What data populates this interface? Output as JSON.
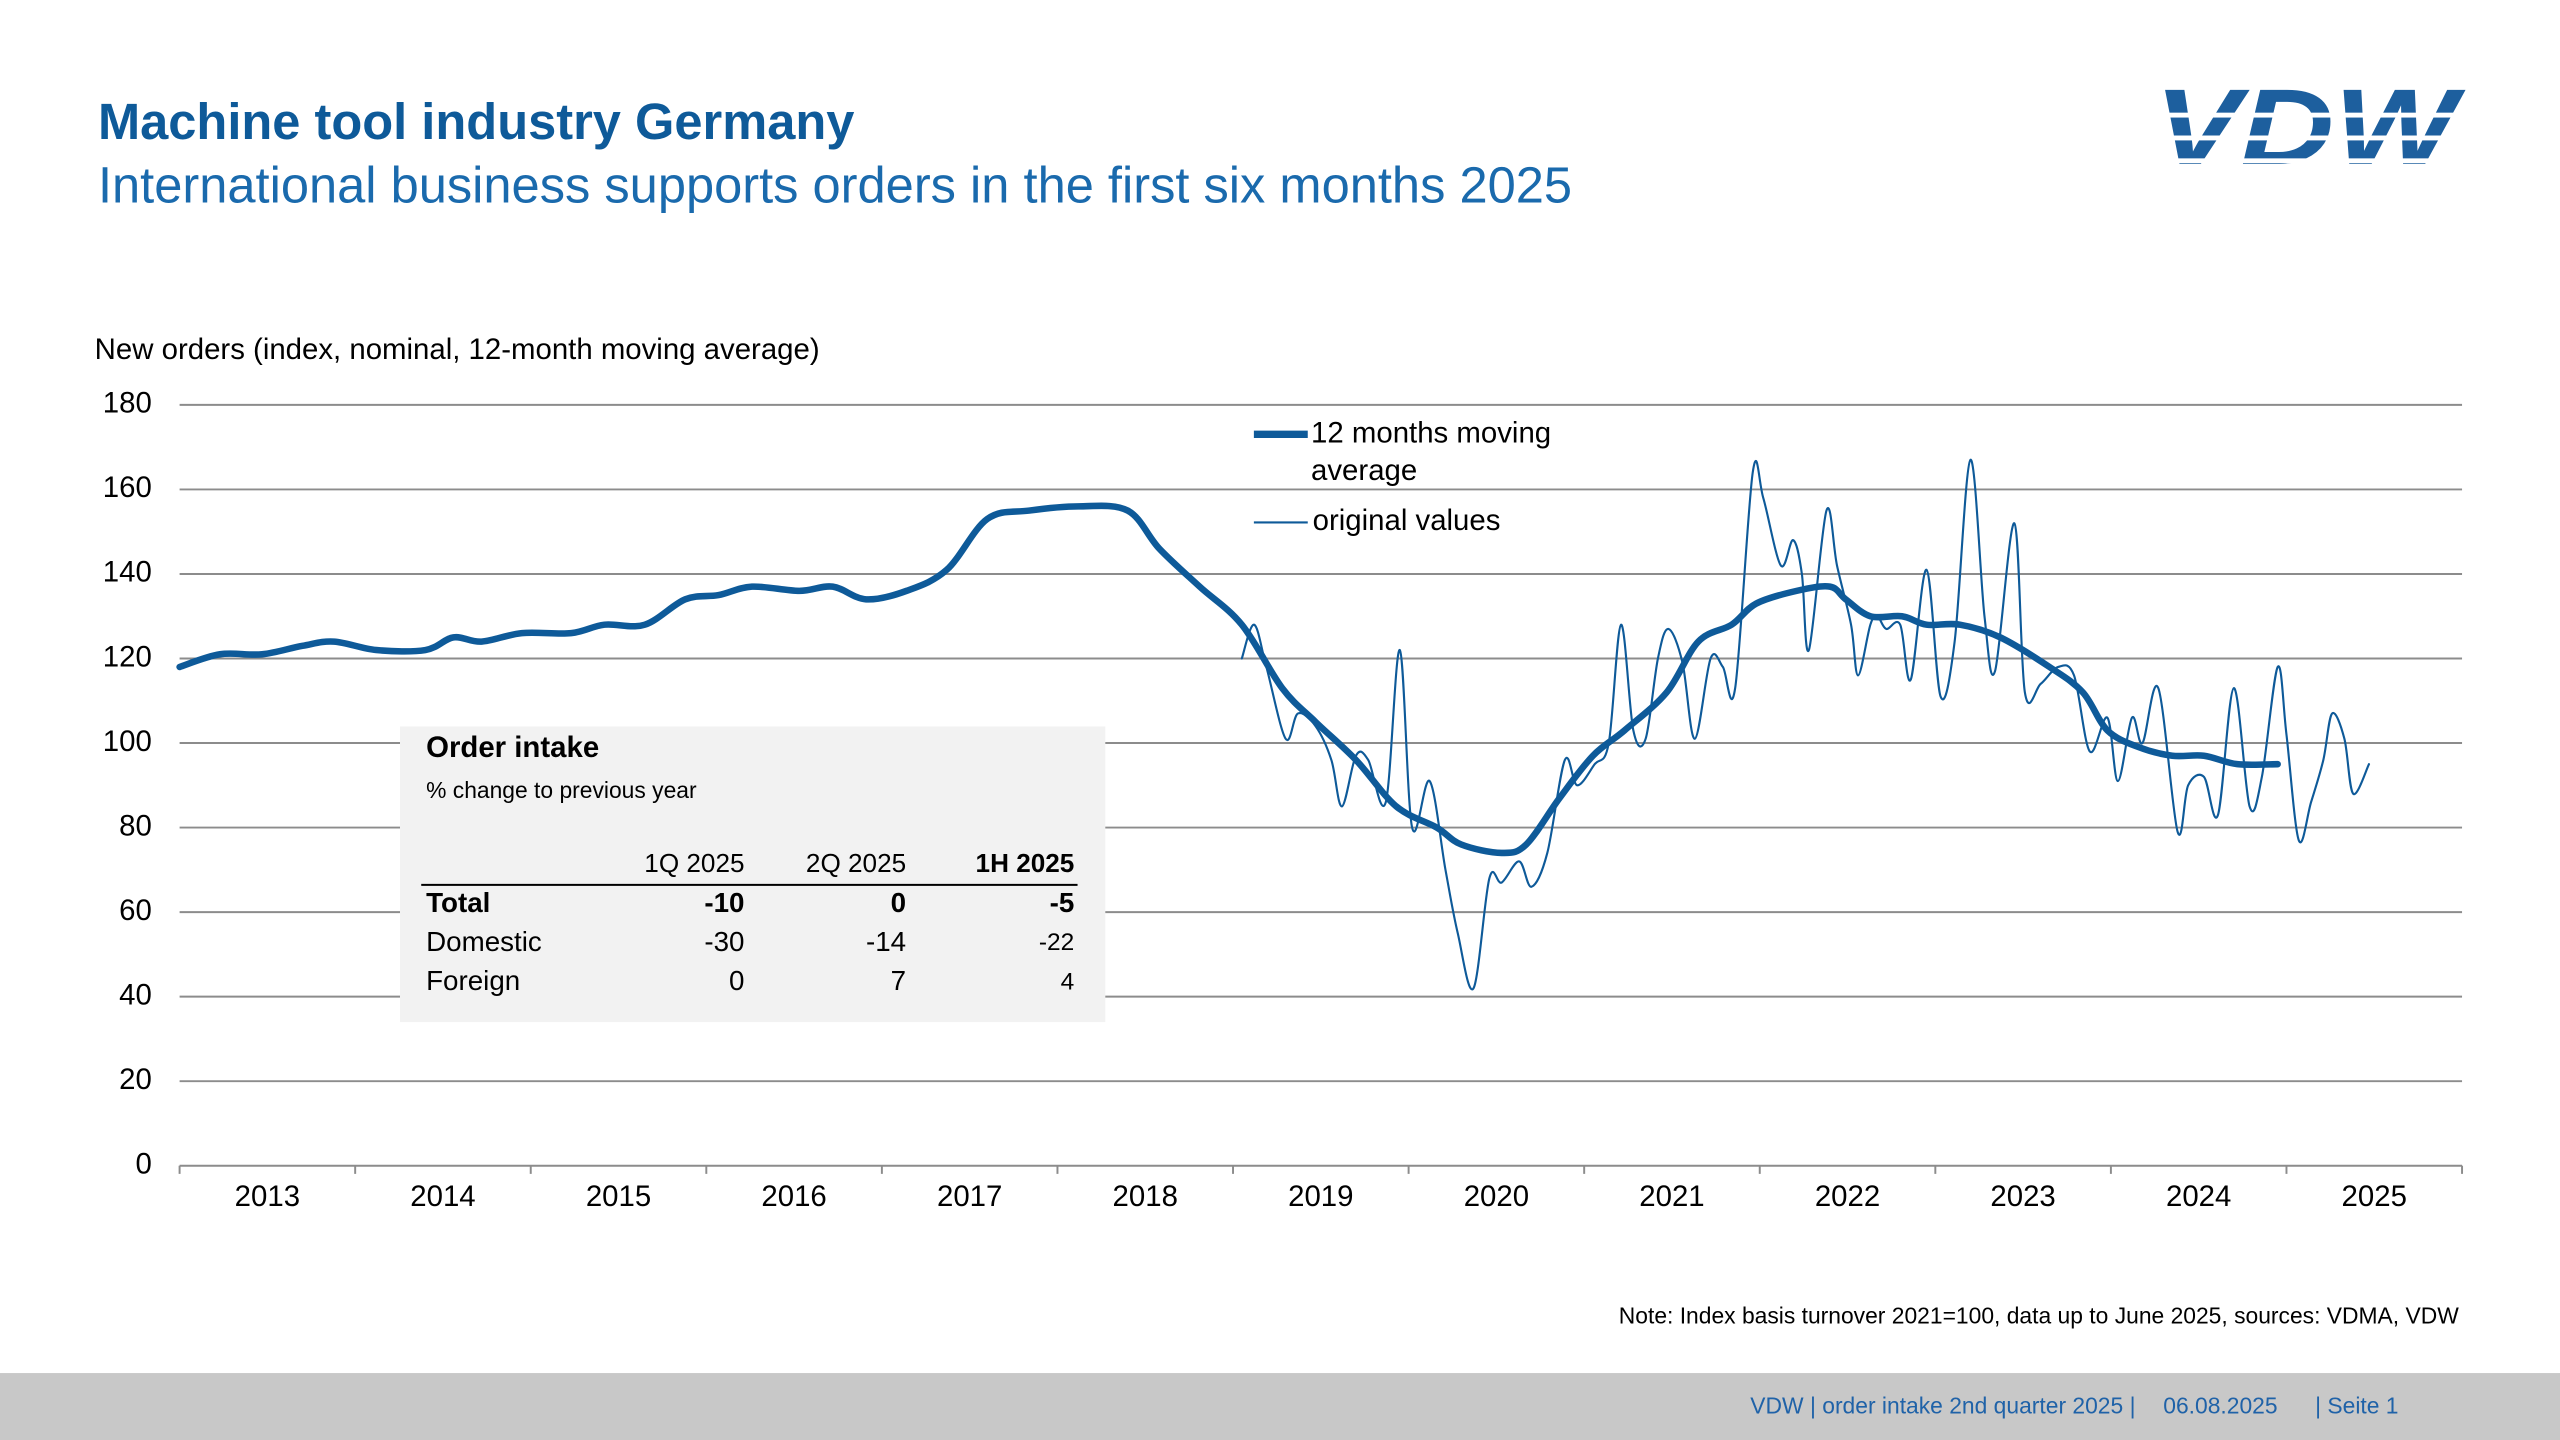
{
  "header": {
    "title": "Machine tool industry Germany",
    "subtitle": "International business supports orders in the first six months 2025",
    "logo": "VDW"
  },
  "chart_data": {
    "type": "line",
    "y_label": "New orders (index, nominal, 12-month moving average)",
    "ylim": [
      0,
      180
    ],
    "yticks": [
      0,
      20,
      40,
      60,
      80,
      100,
      120,
      140,
      160,
      180
    ],
    "grid": true,
    "xlim": [
      2013,
      2026
    ],
    "xticks": [
      2013,
      2014,
      2015,
      2016,
      2017,
      2018,
      2019,
      2020,
      2021,
      2022,
      2023,
      2024,
      2025,
      2026
    ],
    "categories": [
      "2013",
      "2014",
      "2015",
      "2016",
      "2017",
      "2018",
      "2019",
      "2020",
      "2021",
      "2022",
      "2023",
      "2024",
      "2025"
    ],
    "legend": "top-center",
    "series": [
      {
        "name": "12 months moving average",
        "color": "#0e5a99",
        "width": 4,
        "x": [
          2013.0,
          2013.23,
          2013.47,
          2013.7,
          2013.88,
          2014.12,
          2014.4,
          2014.56,
          2014.72,
          2014.95,
          2015.23,
          2015.42,
          2015.65,
          2015.88,
          2016.07,
          2016.26,
          2016.53,
          2016.72,
          2016.91,
          2017.14,
          2017.37,
          2017.6,
          2017.84,
          2018.12,
          2018.4,
          2018.58,
          2018.81,
          2019.05,
          2019.28,
          2019.47,
          2019.7,
          2019.93,
          2020.16,
          2020.3,
          2020.53,
          2020.67,
          2020.86,
          2021.05,
          2021.23,
          2021.47,
          2021.65,
          2021.84,
          2021.98,
          2022.21,
          2022.4,
          2022.49,
          2022.63,
          2022.81,
          2022.95,
          2023.14,
          2023.37,
          2023.65,
          2023.84,
          2023.98,
          2024.16,
          2024.35,
          2024.53,
          2024.72,
          2024.95
        ],
        "values": [
          118,
          121,
          121,
          123,
          124,
          122,
          122,
          125,
          124,
          126,
          126,
          128,
          128,
          134,
          135,
          137,
          136,
          137,
          134,
          136,
          141,
          153,
          155,
          156,
          155,
          146,
          137,
          128,
          113,
          105,
          96,
          85,
          80,
          76,
          74,
          76,
          87,
          97,
          103,
          112,
          124,
          128,
          133,
          136,
          137,
          134,
          130,
          130,
          128,
          128,
          125,
          118,
          112,
          103,
          99,
          97,
          97,
          95,
          95
        ]
      },
      {
        "name": "original values",
        "color": "#0e5a99",
        "width": 1.3,
        "x": [
          2019.05,
          2019.12,
          2019.19,
          2019.3,
          2019.37,
          2019.47,
          2019.56,
          2019.62,
          2019.7,
          2019.77,
          2019.87,
          2019.95,
          2020.02,
          2020.12,
          2020.21,
          2020.28,
          2020.37,
          2020.46,
          2020.53,
          2020.63,
          2020.7,
          2020.79,
          2020.89,
          2020.96,
          2021.06,
          2021.14,
          2021.21,
          2021.28,
          2021.35,
          2021.42,
          2021.48,
          2021.56,
          2021.63,
          2021.72,
          2021.79,
          2021.86,
          2021.96,
          2022.02,
          2022.12,
          2022.19,
          2022.24,
          2022.28,
          2022.38,
          2022.44,
          2022.52,
          2022.56,
          2022.63,
          2022.67,
          2022.72,
          2022.8,
          2022.86,
          2022.95,
          2023.03,
          2023.11,
          2023.2,
          2023.28,
          2023.34,
          2023.45,
          2023.51,
          2023.6,
          2023.7,
          2023.79,
          2023.88,
          2023.98,
          2024.04,
          2024.12,
          2024.18,
          2024.27,
          2024.38,
          2024.44,
          2024.53,
          2024.61,
          2024.7,
          2024.79,
          2024.86,
          2024.95,
          2025.0,
          2025.07,
          2025.14,
          2025.21,
          2025.26,
          2025.33,
          2025.38,
          2025.47
        ],
        "values": [
          120,
          128,
          118,
          101,
          107,
          104,
          96,
          85,
          97,
          96,
          86,
          122,
          80,
          91,
          70,
          55,
          42,
          68,
          67,
          72,
          66,
          74,
          96,
          90,
          95,
          100,
          128,
          103,
          101,
          120,
          127,
          119,
          101,
          120,
          118,
          113,
          164,
          158,
          142,
          148,
          140,
          122,
          155,
          142,
          128,
          116,
          128,
          130,
          127,
          128,
          115,
          141,
          111,
          124,
          167,
          130,
          117,
          152,
          112,
          114,
          118,
          116,
          98,
          106,
          91,
          106,
          100,
          113,
          79,
          90,
          92,
          83,
          113,
          85,
          92,
          118,
          102,
          77,
          86,
          96,
          107,
          101,
          88,
          95
        ]
      }
    ],
    "note": "Note: Index basis turnover 2021=100, data up to June 2025, sources: VDMA, VDW"
  },
  "table": {
    "title": "Order intake",
    "subtitle": "% change to previous year",
    "columns": [
      "1Q 2025",
      "2Q 2025",
      "1H 2025"
    ],
    "rows": [
      {
        "label": "Total",
        "values": [
          -10,
          0,
          -5
        ]
      },
      {
        "label": "Domestic",
        "values": [
          -30,
          -14,
          -22
        ]
      },
      {
        "label": "Foreign",
        "values": [
          0,
          7,
          4
        ]
      }
    ]
  },
  "footer": {
    "source": "VDW  | order intake 2nd quarter 2025 |",
    "date": "06.08.2025",
    "page": "| Seite  1"
  }
}
